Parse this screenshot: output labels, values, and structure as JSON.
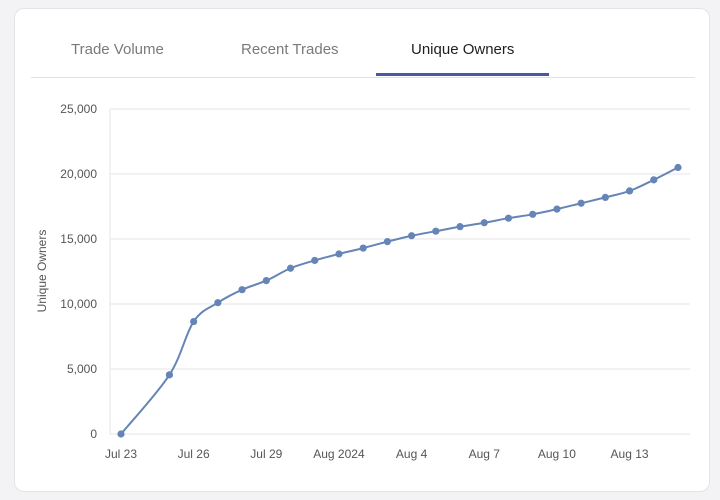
{
  "tabs": [
    {
      "label": "Trade Volume",
      "active": false
    },
    {
      "label": "Recent Trades",
      "active": false
    },
    {
      "label": "Unique Owners",
      "active": true
    }
  ],
  "colors": {
    "line": "#6585b6",
    "active_tab_underline": "#4a57a3",
    "grid": "#e6e6ea"
  },
  "chart_data": {
    "type": "line",
    "title": "",
    "xlabel": "",
    "ylabel": "Unique Owners",
    "ylim": [
      0,
      25000
    ],
    "y_ticks": [
      0,
      5000,
      10000,
      15000,
      20000,
      25000
    ],
    "y_tick_labels": [
      "0",
      "5,000",
      "10,000",
      "15,000",
      "20,000",
      "25,000"
    ],
    "x_ticks": [
      "2024-07-23",
      "2024-07-26",
      "2024-07-29",
      "2024-08-01",
      "2024-08-04",
      "2024-08-07",
      "2024-08-10",
      "2024-08-13"
    ],
    "x_tick_labels": [
      "Jul 23",
      "Jul 26",
      "Jul 29",
      "Aug 2024",
      "Aug 4",
      "Aug 7",
      "Aug 10",
      "Aug 13"
    ],
    "x_range": [
      "2024-07-23",
      "2024-08-15"
    ],
    "grid": true,
    "series": [
      {
        "x": [
          "2024-07-23",
          "2024-07-25",
          "2024-07-26",
          "2024-07-27",
          "2024-07-28",
          "2024-07-29",
          "2024-07-30",
          "2024-07-31",
          "2024-08-01",
          "2024-08-02",
          "2024-08-03",
          "2024-08-04",
          "2024-08-05",
          "2024-08-06",
          "2024-08-07",
          "2024-08-08",
          "2024-08-09",
          "2024-08-10",
          "2024-08-11",
          "2024-08-12",
          "2024-08-13",
          "2024-08-14",
          "2024-08-15"
        ],
        "values": [
          0,
          4550,
          8650,
          10100,
          11100,
          11800,
          12750,
          13350,
          13850,
          14300,
          14800,
          15250,
          15600,
          15950,
          16250,
          16600,
          16900,
          17300,
          17750,
          18200,
          18700,
          19550,
          20500
        ]
      }
    ]
  }
}
